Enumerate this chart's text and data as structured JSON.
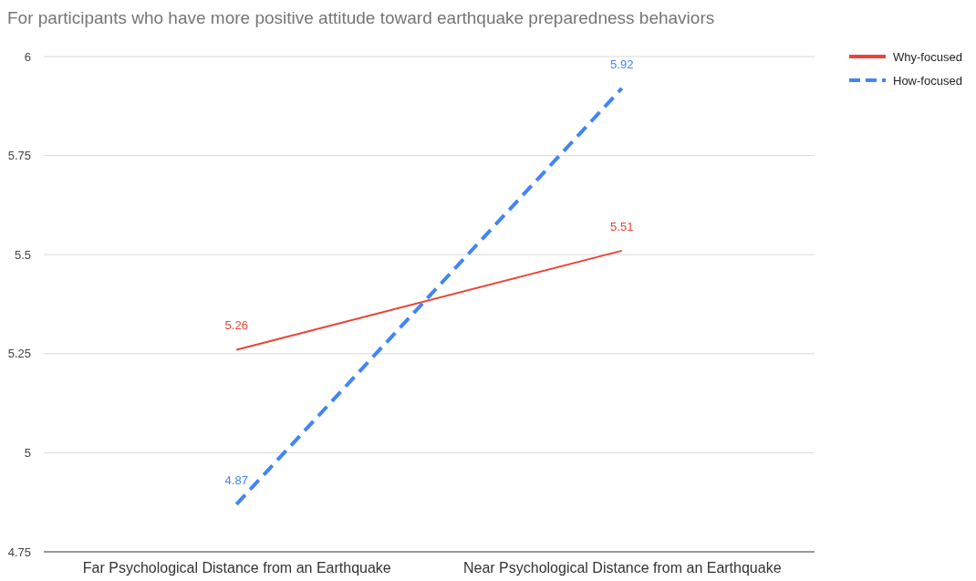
{
  "chart_data": {
    "type": "line",
    "title": "For participants who have more positive attitude toward earthquake preparedness behaviors",
    "categories": [
      "Far Psychological Distance from an Earthquake",
      "Near Psychological Distance from an Earthquake"
    ],
    "series": [
      {
        "name": "Why-focused",
        "color": "#ea4335",
        "values": [
          5.26,
          5.51
        ],
        "line_style": "solid"
      },
      {
        "name": "How-focused",
        "color": "#4285f4",
        "values": [
          4.87,
          5.92
        ],
        "line_style": "dashed"
      }
    ],
    "ylim": [
      4.75,
      6
    ],
    "yticks": [
      4.75,
      5,
      5.25,
      5.5,
      5.75,
      6
    ],
    "grid": "y",
    "legend": "top right",
    "data_labels": true,
    "marker": "none"
  }
}
